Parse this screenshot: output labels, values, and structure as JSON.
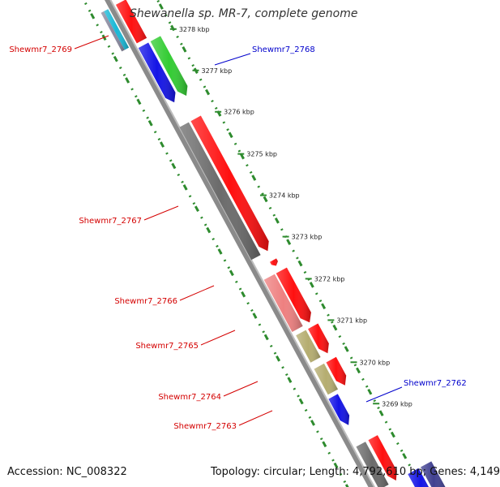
{
  "title": "Shewanella sp. MR-7, complete genome",
  "footer": {
    "accession": "Accession: NC_008322",
    "summary": "Topology: circular; Length: 4,792,610 bp; Genes: 4,149"
  },
  "colors": {
    "background": "#ffffff",
    "backbone": "#8a8a8a",
    "dotted_track": "#2e8b2e",
    "label_red": "#d40000",
    "label_blue": "#0000cc"
  },
  "ticks": [
    {
      "label": "3278 kbp"
    },
    {
      "label": "3277 kbp"
    },
    {
      "label": "3276 kbp"
    },
    {
      "label": "3275 kbp"
    },
    {
      "label": "3274 kbp"
    },
    {
      "label": "3273 kbp"
    },
    {
      "label": "3272 kbp"
    },
    {
      "label": "3271 kbp"
    },
    {
      "label": "3270 kbp"
    },
    {
      "label": "3269 kbp"
    }
  ],
  "gene_labels": [
    {
      "text": "Shewmr7_2769",
      "color": "#d40000"
    },
    {
      "text": "Shewmr7_2768",
      "color": "#0000cc"
    },
    {
      "text": "Shewmr7_2767",
      "color": "#d40000"
    },
    {
      "text": "Shewmr7_2766",
      "color": "#d40000"
    },
    {
      "text": "Shewmr7_2765",
      "color": "#d40000"
    },
    {
      "text": "Shewmr7_2764",
      "color": "#d40000"
    },
    {
      "text": "Shewmr7_2763",
      "color": "#d40000"
    },
    {
      "text": "Shewmr7_2762",
      "color": "#0000cc"
    }
  ],
  "features": [
    {
      "name": "cog-cyan",
      "color": "#19b8d6"
    },
    {
      "name": "cog-gray-small",
      "color": "#8a8aa0"
    },
    {
      "name": "orf-red-top",
      "color": "#ff1010"
    },
    {
      "name": "cog-blue-2768",
      "color": "#1414e6"
    },
    {
      "name": "orf-green-2768",
      "color": "#33cc33"
    },
    {
      "name": "cog-gray-2767",
      "color": "#6b6b6b"
    },
    {
      "name": "orf-red-2767",
      "color": "#ff1010"
    },
    {
      "name": "orf-red-small",
      "color": "#ff1010"
    },
    {
      "name": "cog-pink-2766",
      "color": "#ee8080"
    },
    {
      "name": "orf-red-2766",
      "color": "#ff1010"
    },
    {
      "name": "cog-olive-2764",
      "color": "#b5ad70"
    },
    {
      "name": "orf-red-2764",
      "color": "#ff1010"
    },
    {
      "name": "cog-olive-2763",
      "color": "#b5ad70"
    },
    {
      "name": "orf-red-2763",
      "color": "#ff1010"
    },
    {
      "name": "orf-blue-2762",
      "color": "#1414e6"
    },
    {
      "name": "cog-gray-bottom",
      "color": "#6b6b6b"
    },
    {
      "name": "orf-red-bottom",
      "color": "#ff1010"
    },
    {
      "name": "cog-blue-bottom",
      "color": "#1414e6"
    },
    {
      "name": "cog-navy-bottom",
      "color": "#404090"
    }
  ]
}
